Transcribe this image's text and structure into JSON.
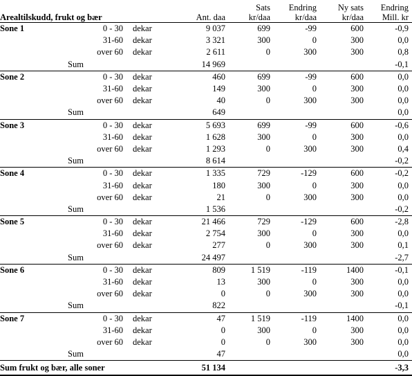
{
  "table": {
    "header": {
      "title": "Arealtilskudd, frukt og bær",
      "col_ant": "Ant.  daa",
      "col_sats": [
        "Sats",
        "kr/daa"
      ],
      "col_endring": [
        "Endring",
        "kr/daa"
      ],
      "col_nysats": [
        "Ny sats",
        "kr/daa"
      ],
      "col_endring_mill": [
        "Endring",
        "Mill. kr"
      ]
    },
    "unit_label": "dekar",
    "sum_label": "Sum",
    "zones": [
      {
        "name": "Sone 1",
        "rows": [
          {
            "range": "0 - 30",
            "ant": "9 037",
            "sats": "699",
            "endring": "-99",
            "nysats": "600",
            "mill": "-0,9"
          },
          {
            "range": "31-60",
            "ant": "3 321",
            "sats": "300",
            "endring": "0",
            "nysats": "300",
            "mill": "0,0"
          },
          {
            "range": "over 60",
            "ant": "2 611",
            "sats": "0",
            "endring": "300",
            "nysats": "300",
            "mill": "0,8"
          }
        ],
        "sum": {
          "ant": "14 969",
          "mill": "-0,1"
        }
      },
      {
        "name": "Sone 2",
        "rows": [
          {
            "range": "0 - 30",
            "ant": "460",
            "sats": "699",
            "endring": "-99",
            "nysats": "600",
            "mill": "0,0"
          },
          {
            "range": "31-60",
            "ant": "149",
            "sats": "300",
            "endring": "0",
            "nysats": "300",
            "mill": "0,0"
          },
          {
            "range": "over 60",
            "ant": "40",
            "sats": "0",
            "endring": "300",
            "nysats": "300",
            "mill": "0,0"
          }
        ],
        "sum": {
          "ant": "649",
          "mill": "0,0"
        }
      },
      {
        "name": "Sone 3",
        "rows": [
          {
            "range": "0 - 30",
            "ant": "5 693",
            "sats": "699",
            "endring": "-99",
            "nysats": "600",
            "mill": "-0,6"
          },
          {
            "range": "31-60",
            "ant": "1 628",
            "sats": "300",
            "endring": "0",
            "nysats": "300",
            "mill": "0,0"
          },
          {
            "range": "over 60",
            "ant": "1 293",
            "sats": "0",
            "endring": "300",
            "nysats": "300",
            "mill": "0,4"
          }
        ],
        "sum": {
          "ant": "8 614",
          "mill": "-0,2"
        }
      },
      {
        "name": "Sone 4",
        "rows": [
          {
            "range": "0 - 30",
            "ant": "1 335",
            "sats": "729",
            "endring": "-129",
            "nysats": "600",
            "mill": "-0,2"
          },
          {
            "range": "31-60",
            "ant": "180",
            "sats": "300",
            "endring": "0",
            "nysats": "300",
            "mill": "0,0"
          },
          {
            "range": "over 60",
            "ant": "21",
            "sats": "0",
            "endring": "300",
            "nysats": "300",
            "mill": "0,0"
          }
        ],
        "sum": {
          "ant": "1 536",
          "mill": "-0,2"
        }
      },
      {
        "name": "Sone 5",
        "rows": [
          {
            "range": "0 - 30",
            "ant": "21 466",
            "sats": "729",
            "endring": "-129",
            "nysats": "600",
            "mill": "-2,8"
          },
          {
            "range": "31-60",
            "ant": "2 754",
            "sats": "300",
            "endring": "0",
            "nysats": "300",
            "mill": "0,0"
          },
          {
            "range": "over 60",
            "ant": "277",
            "sats": "0",
            "endring": "300",
            "nysats": "300",
            "mill": "0,1"
          }
        ],
        "sum": {
          "ant": "24 497",
          "mill": "-2,7"
        }
      },
      {
        "name": "Sone 6",
        "rows": [
          {
            "range": "0 - 30",
            "ant": "809",
            "sats": "1 519",
            "endring": "-119",
            "nysats": "1400",
            "mill": "-0,1"
          },
          {
            "range": "31-60",
            "ant": "13",
            "sats": "300",
            "endring": "0",
            "nysats": "300",
            "mill": "0,0"
          },
          {
            "range": "over 60",
            "ant": "0",
            "sats": "0",
            "endring": "300",
            "nysats": "300",
            "mill": "0,0"
          }
        ],
        "sum": {
          "ant": "822",
          "mill": "-0,1"
        }
      },
      {
        "name": "Sone 7",
        "rows": [
          {
            "range": "0 - 30",
            "ant": "47",
            "sats": "1 519",
            "endring": "-119",
            "nysats": "1400",
            "mill": "0,0"
          },
          {
            "range": "31-60",
            "ant": "0",
            "sats": "300",
            "endring": "0",
            "nysats": "300",
            "mill": "0,0"
          },
          {
            "range": "over 60",
            "ant": "0",
            "sats": "0",
            "endring": "300",
            "nysats": "300",
            "mill": "0,0"
          }
        ],
        "sum": {
          "ant": "47",
          "mill": "0,0"
        }
      }
    ],
    "total": {
      "label": "Sum frukt og bær, alle soner",
      "ant": "51 134",
      "mill": "-3,3"
    }
  }
}
